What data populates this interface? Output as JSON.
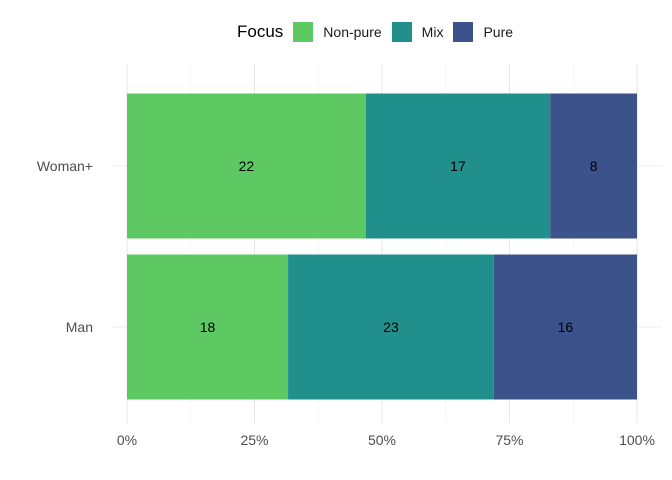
{
  "legend": {
    "title": "Focus",
    "items": [
      {
        "label": "Non-pure",
        "color": "#5EC962"
      },
      {
        "label": "Mix",
        "color": "#21908C"
      },
      {
        "label": "Pure",
        "color": "#3B528B"
      }
    ]
  },
  "chart_data": {
    "type": "bar",
    "orientation": "horizontal",
    "stacked": "percent",
    "categories": [
      "Woman+",
      "Man"
    ],
    "series": [
      {
        "name": "Non-pure",
        "color": "#5EC962",
        "values": [
          22,
          18
        ]
      },
      {
        "name": "Mix",
        "color": "#21908C",
        "values": [
          17,
          23
        ]
      },
      {
        "name": "Pure",
        "color": "#3B528B",
        "values": [
          8,
          16
        ]
      }
    ],
    "x_ticks": [
      "0%",
      "25%",
      "50%",
      "75%",
      "100%"
    ],
    "xlim": [
      0,
      1
    ],
    "grid": true,
    "legend_position": "top"
  }
}
